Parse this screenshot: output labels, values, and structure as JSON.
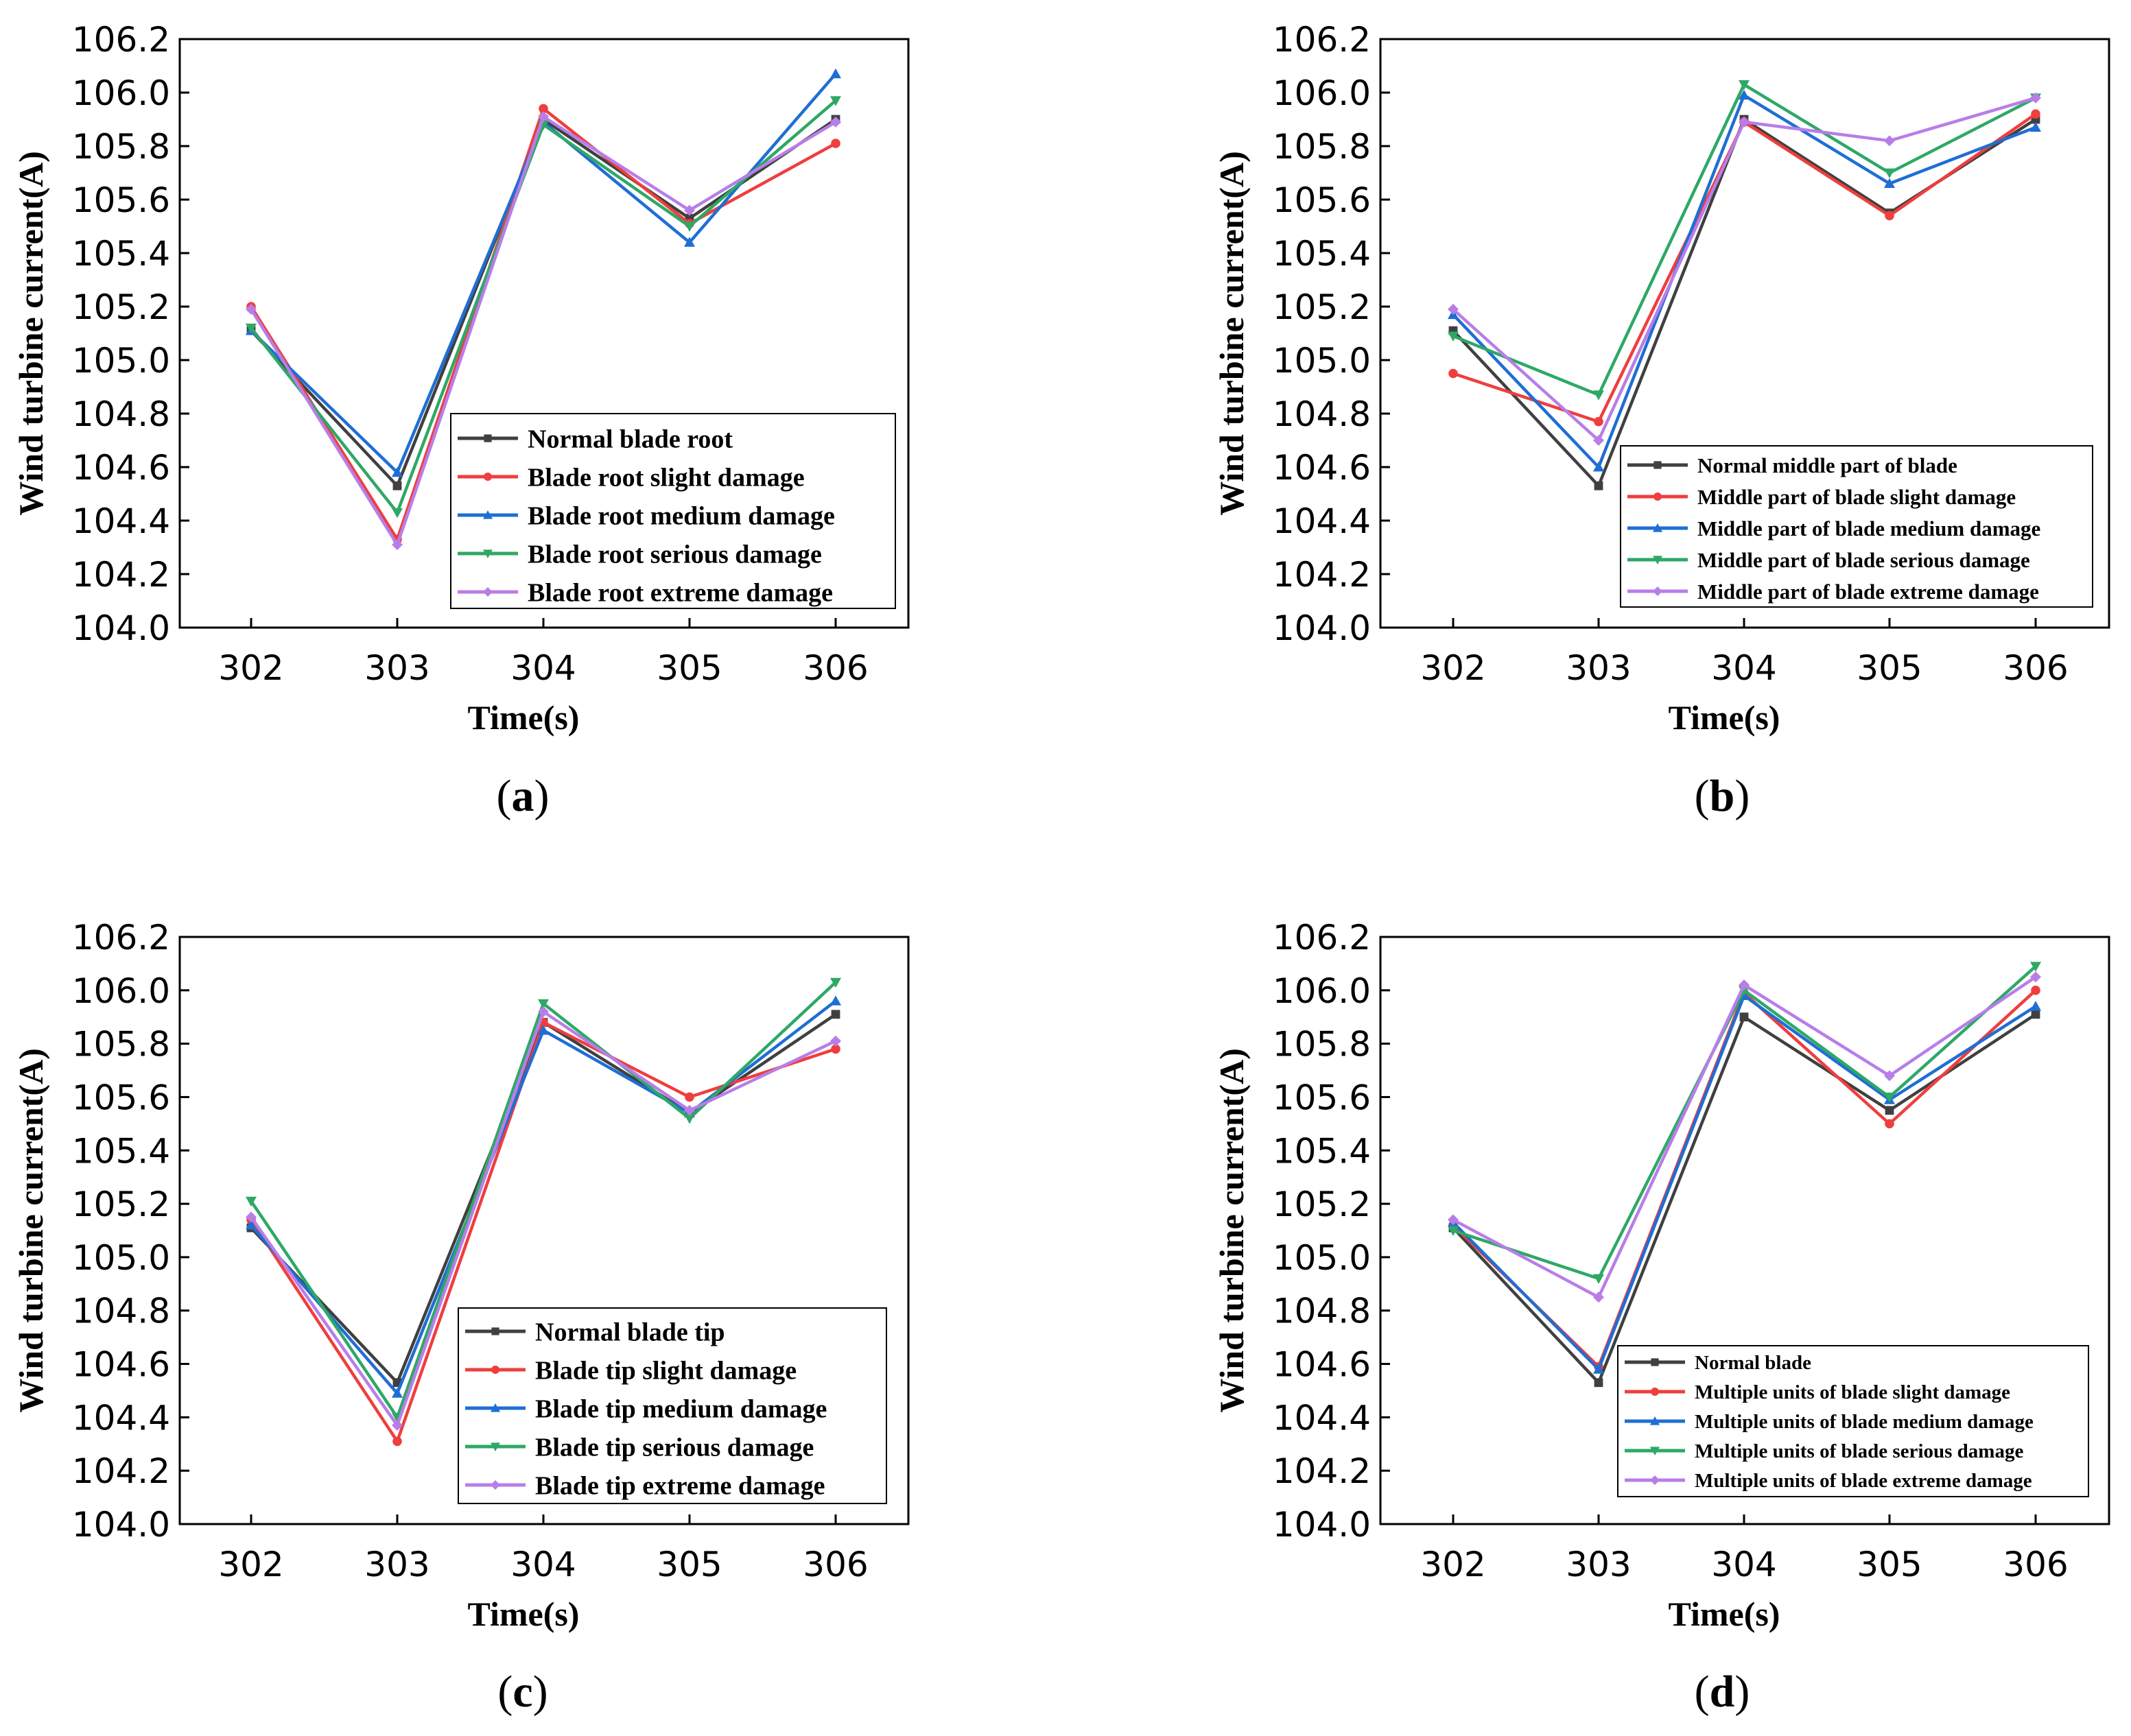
{
  "figure": {
    "colors": {
      "normal": "#404040",
      "slight": "#ef3e3e",
      "medium": "#1f6ed4",
      "serious": "#2ea866",
      "extreme": "#b87ee8"
    }
  },
  "chart_data": [
    {
      "type": "line",
      "panel": "a",
      "panel_label": {
        "open": "(",
        "letter": "a",
        "close": ")"
      },
      "xlabel": "Time(s)",
      "ylabel": "Wind turbine current(A)",
      "categories": [
        "302",
        "303",
        "304",
        "305",
        "306"
      ],
      "ylim": [
        104.0,
        106.2
      ],
      "yticks": [
        "104.0",
        "104.2",
        "104.4",
        "104.6",
        "104.8",
        "105.0",
        "105.2",
        "105.4",
        "105.6",
        "105.8",
        "106.0",
        "106.2"
      ],
      "legend_position": "lower-right",
      "series": [
        {
          "name": "Normal blade root",
          "color": "#404040",
          "marker": "square",
          "values": [
            105.11,
            104.53,
            105.9,
            105.53,
            105.9
          ]
        },
        {
          "name": "Blade root slight damage",
          "color": "#ef3e3e",
          "marker": "circle",
          "values": [
            105.2,
            104.33,
            105.94,
            105.51,
            105.81
          ]
        },
        {
          "name": "Blade root medium damage",
          "color": "#1f6ed4",
          "marker": "triangle-up",
          "values": [
            105.11,
            104.58,
            105.89,
            105.44,
            106.07
          ]
        },
        {
          "name": "Blade root serious damage",
          "color": "#2ea866",
          "marker": "triangle-down",
          "values": [
            105.12,
            104.43,
            105.88,
            105.5,
            105.97
          ]
        },
        {
          "name": "Blade root extreme damage",
          "color": "#b87ee8",
          "marker": "diamond",
          "values": [
            105.19,
            104.31,
            105.91,
            105.56,
            105.89
          ]
        }
      ]
    },
    {
      "type": "line",
      "panel": "b",
      "panel_label": {
        "open": "(",
        "letter": "b",
        "close": ")"
      },
      "xlabel": "Time(s)",
      "ylabel": "Wind turbine current(A)",
      "categories": [
        "302",
        "303",
        "304",
        "305",
        "306"
      ],
      "ylim": [
        104.0,
        106.2
      ],
      "yticks": [
        "104.0",
        "104.2",
        "104.4",
        "104.6",
        "104.8",
        "105.0",
        "105.2",
        "105.4",
        "105.6",
        "105.8",
        "106.0",
        "106.2"
      ],
      "legend_position": "lower-right",
      "series": [
        {
          "name": "Normal middle part of blade",
          "color": "#404040",
          "marker": "square",
          "values": [
            105.11,
            104.53,
            105.9,
            105.55,
            105.9
          ]
        },
        {
          "name": "Middle part of blade slight damage",
          "color": "#ef3e3e",
          "marker": "circle",
          "values": [
            104.95,
            104.77,
            105.89,
            105.54,
            105.92
          ]
        },
        {
          "name": "Middle part of blade medium damage",
          "color": "#1f6ed4",
          "marker": "triangle-up",
          "values": [
            105.17,
            104.6,
            105.99,
            105.66,
            105.87
          ]
        },
        {
          "name": "Middle part of blade serious damage",
          "color": "#2ea866",
          "marker": "triangle-down",
          "values": [
            105.09,
            104.87,
            106.03,
            105.7,
            105.98
          ]
        },
        {
          "name": "Middle part of blade extreme damage",
          "color": "#b87ee8",
          "marker": "diamond",
          "values": [
            105.19,
            104.7,
            105.89,
            105.82,
            105.98
          ]
        }
      ]
    },
    {
      "type": "line",
      "panel": "c",
      "panel_label": {
        "open": "(",
        "letter": "c",
        "close": ")"
      },
      "xlabel": "Time(s)",
      "ylabel": "Wind turbine current(A)",
      "categories": [
        "302",
        "303",
        "304",
        "305",
        "306"
      ],
      "ylim": [
        104.0,
        106.2
      ],
      "yticks": [
        "104.0",
        "104.2",
        "104.4",
        "104.6",
        "104.8",
        "105.0",
        "105.2",
        "105.4",
        "105.6",
        "105.8",
        "106.0",
        "106.2"
      ],
      "legend_position": "lower-right",
      "series": [
        {
          "name": "Normal blade tip",
          "color": "#404040",
          "marker": "square",
          "values": [
            105.11,
            104.53,
            105.88,
            105.54,
            105.91
          ]
        },
        {
          "name": "Blade tip slight damage",
          "color": "#ef3e3e",
          "marker": "circle",
          "values": [
            105.14,
            104.31,
            105.88,
            105.6,
            105.78
          ]
        },
        {
          "name": "Blade tip medium damage",
          "color": "#1f6ed4",
          "marker": "triangle-up",
          "values": [
            105.12,
            104.49,
            105.85,
            105.54,
            105.96
          ]
        },
        {
          "name": "Blade tip serious damage",
          "color": "#2ea866",
          "marker": "triangle-down",
          "values": [
            105.21,
            104.4,
            105.95,
            105.52,
            106.03
          ]
        },
        {
          "name": "Blade tip extreme damage",
          "color": "#b87ee8",
          "marker": "diamond",
          "values": [
            105.15,
            104.37,
            105.92,
            105.55,
            105.81
          ]
        }
      ]
    },
    {
      "type": "line",
      "panel": "d",
      "panel_label": {
        "open": "(",
        "letter": "d",
        "close": ")"
      },
      "xlabel": "Time(s)",
      "ylabel": "Wind turbine current(A)",
      "categories": [
        "302",
        "303",
        "304",
        "305",
        "306"
      ],
      "ylim": [
        104.0,
        106.2
      ],
      "yticks": [
        "104.0",
        "104.2",
        "104.4",
        "104.6",
        "104.8",
        "105.0",
        "105.2",
        "105.4",
        "105.6",
        "105.8",
        "106.0",
        "106.2"
      ],
      "legend_position": "lower-right",
      "series": [
        {
          "name": "Normal blade",
          "color": "#404040",
          "marker": "square",
          "values": [
            105.11,
            104.53,
            105.9,
            105.55,
            105.91
          ]
        },
        {
          "name": "Multiple units of blade slight damage",
          "color": "#ef3e3e",
          "marker": "circle",
          "values": [
            105.12,
            104.59,
            105.99,
            105.5,
            106.0
          ]
        },
        {
          "name": "Multiple units of blade medium damage",
          "color": "#1f6ed4",
          "marker": "triangle-up",
          "values": [
            105.13,
            104.58,
            105.98,
            105.59,
            105.94
          ]
        },
        {
          "name": "Multiple units of blade serious damage",
          "color": "#2ea866",
          "marker": "triangle-down",
          "values": [
            105.1,
            104.92,
            106.0,
            105.6,
            106.09
          ]
        },
        {
          "name": "Multiple units of blade extreme damage",
          "color": "#b87ee8",
          "marker": "diamond",
          "values": [
            105.14,
            104.85,
            106.02,
            105.68,
            106.05
          ]
        }
      ]
    }
  ]
}
